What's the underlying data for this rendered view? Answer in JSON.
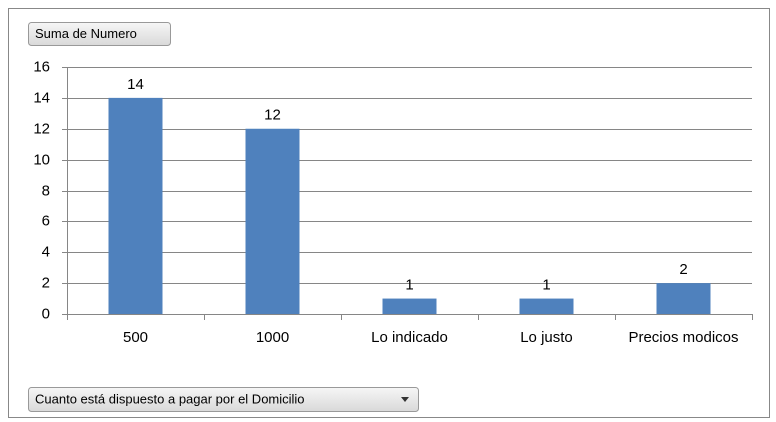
{
  "chart_data": {
    "type": "bar",
    "field_button": "Suma de Numero",
    "filter_button": "Cuanto está dispuesto a pagar por el Domicilio",
    "categories": [
      "500",
      "1000",
      "Lo indicado",
      "Lo justo",
      "Precios modicos"
    ],
    "values": [
      14,
      12,
      1,
      1,
      2
    ],
    "color": "#4f81bd",
    "ylim": [
      0,
      16
    ],
    "yticks": [
      0,
      2,
      4,
      6,
      8,
      10,
      12,
      14,
      16
    ],
    "grid": true
  }
}
